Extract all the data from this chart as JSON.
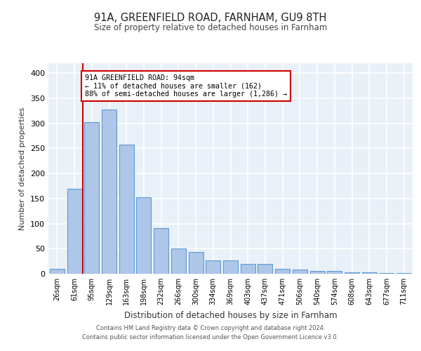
{
  "title": "91A, GREENFIELD ROAD, FARNHAM, GU9 8TH",
  "subtitle": "Size of property relative to detached houses in Farnham",
  "xlabel": "Distribution of detached houses by size in Farnham",
  "ylabel": "Number of detached properties",
  "bar_labels": [
    "26sqm",
    "61sqm",
    "95sqm",
    "129sqm",
    "163sqm",
    "198sqm",
    "232sqm",
    "266sqm",
    "300sqm",
    "334sqm",
    "369sqm",
    "403sqm",
    "437sqm",
    "471sqm",
    "506sqm",
    "540sqm",
    "574sqm",
    "608sqm",
    "643sqm",
    "677sqm",
    "711sqm"
  ],
  "bar_heights": [
    10,
    170,
    302,
    327,
    258,
    153,
    91,
    51,
    43,
    27,
    27,
    20,
    20,
    10,
    9,
    5,
    5,
    3,
    3,
    2,
    2
  ],
  "bar_color": "#aec6e8",
  "bar_edge_color": "#5b9bd5",
  "annotation_line_color": "#cc0000",
  "annotation_box_text": "91A GREENFIELD ROAD: 94sqm\n← 11% of detached houses are smaller (162)\n88% of semi-detached houses are larger (1,286) →",
  "annotation_box_color": "#cc0000",
  "ylim": [
    0,
    420
  ],
  "yticks": [
    0,
    50,
    100,
    150,
    200,
    250,
    300,
    350,
    400
  ],
  "footer_line1": "Contains HM Land Registry data © Crown copyright and database right 2024.",
  "footer_line2": "Contains public sector information licensed under the Open Government Licence v3.0.",
  "bg_color": "#eaf0f8",
  "grid_color": "#ffffff"
}
